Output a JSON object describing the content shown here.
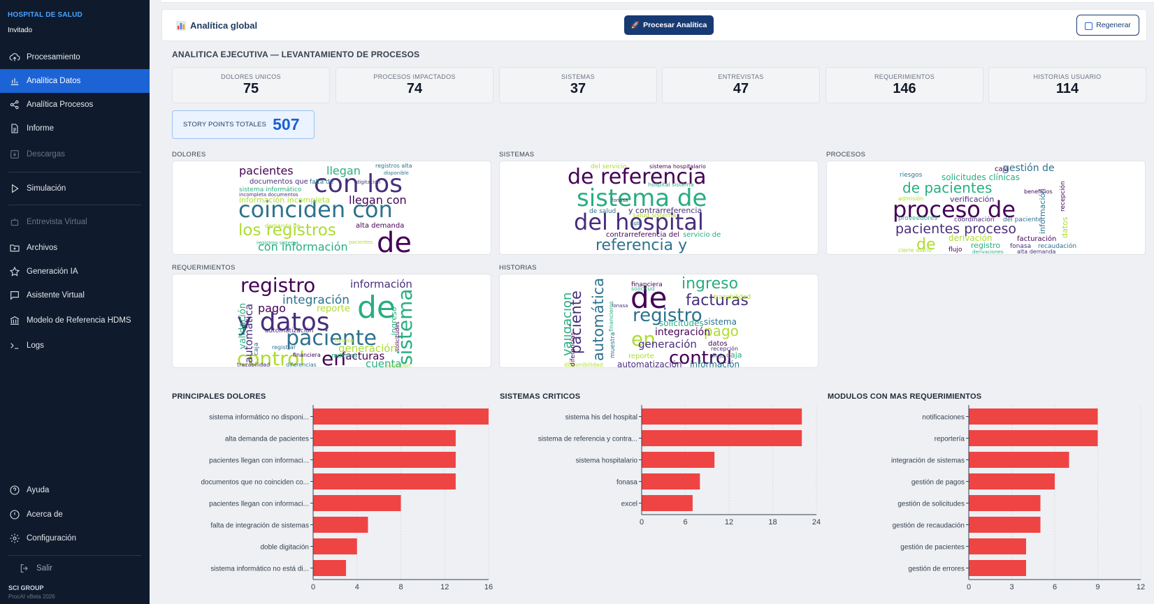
{
  "sidebar": {
    "brand": "HOSPITAL DE SALUD",
    "user": "Invitado",
    "items": [
      {
        "label": "Procesamiento",
        "icon": "upload-cloud-icon"
      },
      {
        "label": "Analítica Datos",
        "icon": "bar-chart-icon"
      },
      {
        "label": "Analítica Procesos",
        "icon": "share-nodes-icon"
      },
      {
        "label": "Informe",
        "icon": "document-icon"
      },
      {
        "label": "Descargas",
        "icon": "download-icon"
      },
      {
        "label": "Simulación",
        "icon": "play-icon"
      },
      {
        "label": "Entrevista Virtual",
        "icon": "robot-icon"
      },
      {
        "label": "Archivos",
        "icon": "folder-plus-icon"
      },
      {
        "label": "Generación IA",
        "icon": "star-icon"
      },
      {
        "label": "Asistente Virtual",
        "icon": "chat-icon"
      },
      {
        "label": "Modelo de Referencia HDMS",
        "icon": "bank-icon"
      },
      {
        "label": "Logs",
        "icon": "terminal-icon"
      }
    ],
    "bottom": [
      {
        "label": "Ayuda",
        "icon": "help-circle-icon"
      },
      {
        "label": "Acerca de",
        "icon": "info-circle-icon"
      },
      {
        "label": "Configuración",
        "icon": "gear-icon"
      }
    ],
    "logout": "Salir",
    "footer_brand": "SCI GROUP",
    "footer_version": "ProcAI vBeta 2026"
  },
  "header": {
    "title": "Analítica global",
    "process_button": "Procesar Analítica",
    "regen_button": "Regenerar"
  },
  "section_title": "ANALITICA EJECUTIVA — LEVANTAMIENTO DE PROCESOS",
  "kpis": [
    {
      "label": "DOLORES UNICOS",
      "value": "75"
    },
    {
      "label": "PROCESOS IMPACTADOS",
      "value": "74"
    },
    {
      "label": "SISTEMAS",
      "value": "37"
    },
    {
      "label": "ENTREVISTAS",
      "value": "47"
    },
    {
      "label": "REQUERIMIENTOS",
      "value": "146"
    },
    {
      "label": "HISTORIAS USUARIO",
      "value": "114"
    }
  ],
  "story_points": {
    "label": "STORY POINTS TOTALES",
    "value": "507"
  },
  "wordclouds": {
    "dolores": {
      "label": "DOLORES",
      "words": [
        "pacientes",
        "llegan",
        "con los",
        "coinciden con",
        "los registros",
        "de",
        "con información",
        "documentos que",
        "falta de",
        "información incompleta",
        "llegan con",
        "sistema informático",
        "incompleta documentos",
        "registros alta",
        "demanda de",
        "alta demanda",
        "registros sistema",
        "digitación",
        "disponible",
        "pacientes"
      ]
    },
    "sistemas": {
      "label": "SISTEMAS",
      "words": [
        "de referencia",
        "sistema de",
        "del hospital",
        "referencia y",
        "del servicio",
        "sistema hospitalario",
        "hospital sistema",
        "y contrarreferencia",
        "de salud",
        "salud sistema",
        "contrarreferencia del",
        "servicio de",
        "fonasa",
        "sgbl"
      ]
    },
    "procesos": {
      "label": "PROCESOS",
      "words": [
        "proceso de",
        "de pacientes",
        "pacientes proceso",
        "gestión de",
        "de",
        "caja",
        "solicitudes clínicas",
        "verificación",
        "riesgos",
        "admisión",
        "beneficios",
        "proveedores",
        "coordinación",
        "del paciente",
        "derivación",
        "facturación",
        "registro",
        "fonasa",
        "recaudación",
        "cierre diario",
        "flujo",
        "derivaciones",
        "alta demanda",
        "información",
        "datos",
        "recepción"
      ]
    },
    "requerimientos": {
      "label": "REQUERIMIENTOS",
      "words": [
        "registro",
        "de",
        "y datos",
        "paciente",
        "control",
        "en",
        "sistema",
        "información",
        "integración",
        "reporte",
        "pago",
        "validación",
        "automática",
        "caja",
        "generación",
        "facturas",
        "cuenta",
        "automatización",
        "registrar",
        "fonasa",
        "financiera",
        "muestra",
        "trazabilidad",
        "diferencias",
        "recepción",
        "solicitudes",
        "ingreso"
      ]
    },
    "historias": {
      "label": "HISTORIAS",
      "words": [
        "de",
        "ingreso",
        "facturas",
        "registro",
        "en",
        "control",
        "validación",
        "paciente",
        "automática",
        "pago",
        "integración",
        "solicitudes",
        "generación",
        "sistema",
        "trazabilidad",
        "datos",
        "caja",
        "automatización",
        "información",
        "reporte",
        "financiera",
        "solicitud",
        "fonasa",
        "muestra",
        "disponibilidad",
        "diferencias",
        "financieros",
        "recepción",
        "flujo"
      ]
    }
  },
  "chart_data": [
    {
      "type": "bar",
      "orientation": "horizontal",
      "title": "PRINCIPALES DOLORES",
      "categories": [
        "sistema informático no disponi...",
        "alta demanda de pacientes",
        "pacientes llegan con informaci...",
        "documentos que no coinciden co...",
        "pacientes llegan con informaci...",
        "falta de integración de sistemas",
        "doble digitación",
        "sistema informático no está di..."
      ],
      "values": [
        16,
        13,
        13,
        13,
        8,
        5,
        4,
        3
      ],
      "xlim": [
        0,
        16
      ],
      "ticks": [
        0,
        4,
        8,
        12,
        16
      ],
      "color": "#ef4444",
      "grid": true
    },
    {
      "type": "bar",
      "orientation": "horizontal",
      "title": "SISTEMAS CRITICOS",
      "categories": [
        "sistema his del hospital",
        "sistema de referencia y contra...",
        "sistema hospitalario",
        "fonasa",
        "excel"
      ],
      "values": [
        22,
        22,
        10,
        8,
        7
      ],
      "xlim": [
        0,
        24
      ],
      "ticks": [
        0,
        6,
        12,
        18,
        24
      ],
      "color": "#ef4444",
      "grid": true
    },
    {
      "type": "bar",
      "orientation": "horizontal",
      "title": "MODULOS CON MAS REQUERIMIENTOS",
      "categories": [
        "notificaciones",
        "reportería",
        "integración de sistemas",
        "gestión de pagos",
        "gestión de solicitudes",
        "gestión de recaudación",
        "gestión de pacientes",
        "gestión de errores"
      ],
      "values": [
        9,
        9,
        7,
        6,
        5,
        5,
        4,
        4
      ],
      "xlim": [
        0,
        12
      ],
      "ticks": [
        0,
        3,
        6,
        9,
        12
      ],
      "color": "#ef4444",
      "grid": true
    }
  ]
}
